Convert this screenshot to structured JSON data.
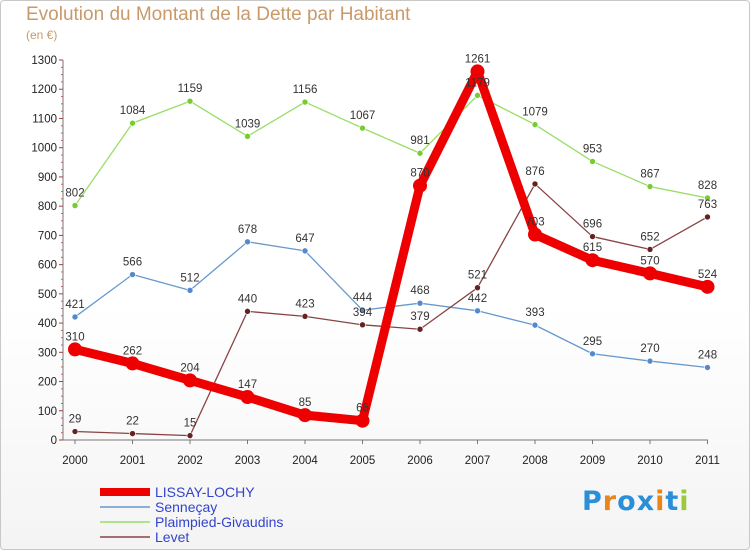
{
  "title": "Evolution du Montant de la Dette par Habitant",
  "subtitle": "(en €)",
  "logo": {
    "text": "Proxiti",
    "colors": [
      "#2a8fd8",
      "#e8861c",
      "#2a8fd8",
      "#2a8fd8",
      "#e8861c",
      "#2a8fd8",
      "#9ac93a"
    ]
  },
  "chart_data": {
    "type": "line",
    "x": [
      "2000",
      "2001",
      "2002",
      "2003",
      "2004",
      "2005",
      "2006",
      "2007",
      "2008",
      "2009",
      "2010",
      "2011"
    ],
    "ylim": [
      0,
      1300
    ],
    "yticks": [
      "0",
      "100",
      "200",
      "300",
      "400",
      "500",
      "600",
      "700",
      "800",
      "900",
      "1000",
      "1100",
      "1200",
      "1300"
    ],
    "grid": false,
    "legend_position": "bottom-left",
    "series": [
      {
        "name": "Plaimpied-Givaudins",
        "color": "#99dd66",
        "dot": "#77cc33",
        "width": 1.3,
        "marker": 3,
        "values": [
          802,
          1084,
          1159,
          1039,
          1156,
          1067,
          981,
          1179,
          1079,
          953,
          867,
          828
        ],
        "labels": [
          "802",
          "1084",
          "1159",
          "1039",
          "1156",
          "1067",
          "981",
          "1179",
          "1079",
          "953",
          "867",
          "828"
        ]
      },
      {
        "name": "Senneçay",
        "color": "#6699cc",
        "dot": "#5588cc",
        "width": 1.3,
        "marker": 3,
        "values": [
          421,
          566,
          512,
          678,
          647,
          444,
          468,
          442,
          393,
          295,
          270,
          248
        ],
        "labels": [
          "421",
          "566",
          "512",
          "678",
          "647",
          "444",
          "468",
          "442",
          "393",
          "295",
          "270",
          "248"
        ]
      },
      {
        "name": "Levet",
        "color": "#884444",
        "dot": "#662222",
        "width": 1.3,
        "marker": 3,
        "values": [
          29,
          22,
          15,
          440,
          423,
          394,
          379,
          521,
          876,
          696,
          652,
          763
        ],
        "labels": [
          "29",
          "22",
          "15",
          "440",
          "423",
          "394",
          "379",
          "521",
          "876",
          "696",
          "652",
          "763"
        ]
      },
      {
        "name": "LISSAY-LOCHY",
        "color": "#ee0000",
        "dot": "#ee0000",
        "width": 9,
        "marker": 7,
        "values": [
          310,
          262,
          204,
          147,
          85,
          66,
          870,
          1261,
          703,
          615,
          570,
          524
        ],
        "labels": [
          "310",
          "262",
          "204",
          "147",
          "85",
          "66",
          "870",
          "1261",
          "703",
          "615",
          "570",
          "524"
        ]
      }
    ],
    "legend": [
      "LISSAY-LOCHY",
      "Senneçay",
      "Plaimpied-Givaudins",
      "Levet"
    ]
  }
}
